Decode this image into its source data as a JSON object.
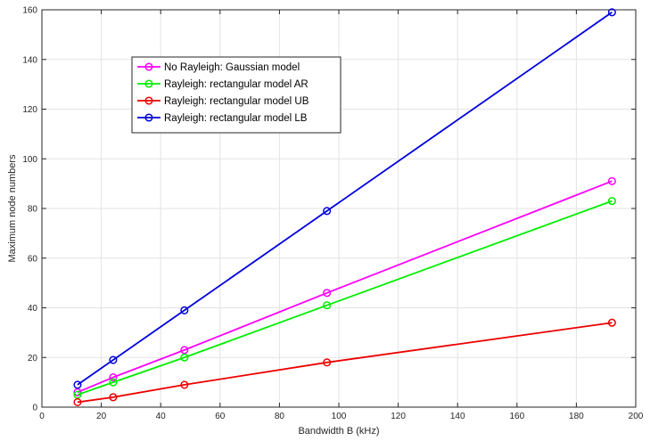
{
  "chart_data": {
    "type": "line",
    "title": "",
    "xlabel": "Bandwidth B (kHz)",
    "ylabel": "Maximum node numbers",
    "xlim": [
      0,
      200
    ],
    "ylim": [
      0,
      160
    ],
    "xticks": [
      0,
      20,
      40,
      60,
      80,
      100,
      120,
      140,
      160,
      180,
      200
    ],
    "yticks": [
      0,
      20,
      40,
      60,
      80,
      100,
      120,
      140,
      160
    ],
    "grid": true,
    "legend_position": "top-left",
    "x": [
      12,
      24,
      48,
      96,
      192
    ],
    "series": [
      {
        "name": "No Rayleigh: Gaussian model",
        "color": "#ff00ff",
        "values": [
          6,
          12,
          23,
          46,
          91
        ]
      },
      {
        "name": "Rayleigh: rectangular model AR",
        "color": "#00ee00",
        "values": [
          5,
          10,
          20,
          41,
          83
        ]
      },
      {
        "name": "Rayleigh: rectangular model UB",
        "color": "#ee0000",
        "values": [
          2,
          4,
          9,
          18,
          34
        ]
      },
      {
        "name": "Rayleigh: rectangular model LB",
        "color": "#0000dd",
        "values": [
          9,
          19,
          39,
          79,
          159
        ]
      }
    ]
  }
}
